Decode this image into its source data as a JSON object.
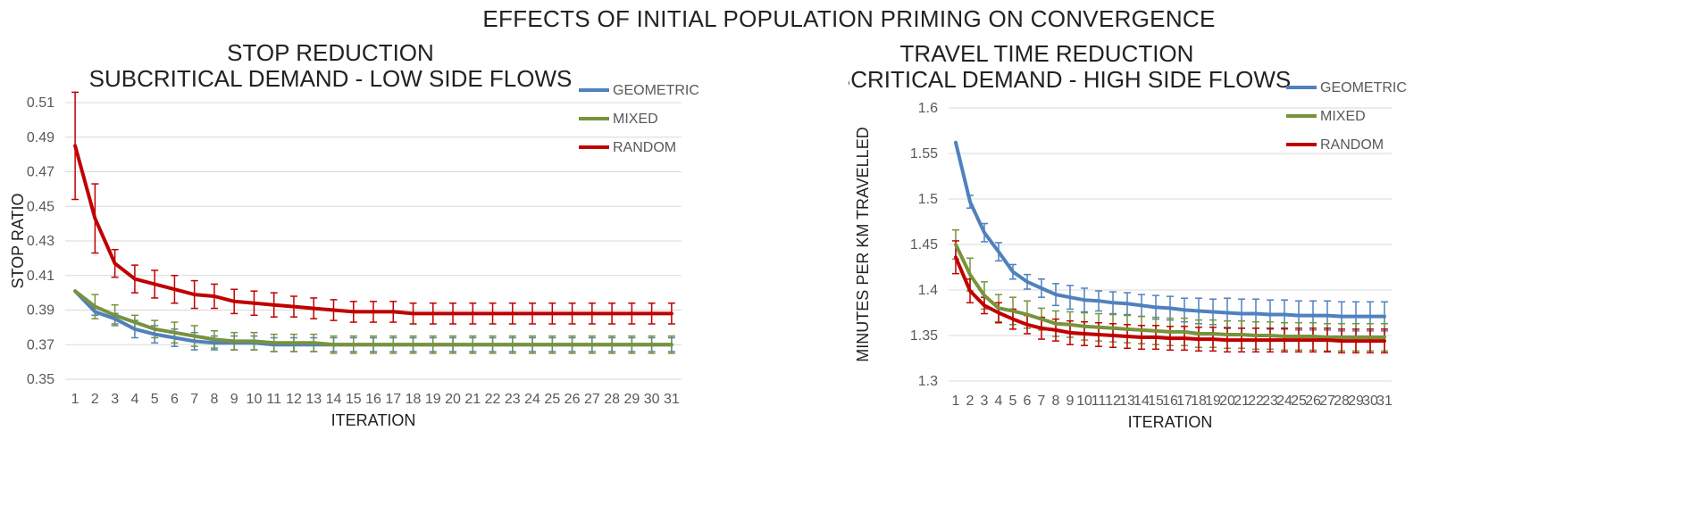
{
  "figure": {
    "title": "EFFECTS OF INITIAL POPULATION PRIMING ON CONVERGENCE"
  },
  "colors": {
    "geometric": "#4f81bd",
    "mixed": "#77933c",
    "random": "#c00000",
    "grid": "#d9d9d9",
    "axis": "#bfbfbf"
  },
  "chart_data": [
    {
      "type": "line",
      "title_lines": [
        "STOP REDUCTION",
        "SUBCRITICAL DEMAND - LOW SIDE FLOWS"
      ],
      "xlabel": "ITERATION",
      "ylabel": "STOP RATIO",
      "ylim": [
        0.35,
        0.51
      ],
      "yticks": [
        0.35,
        0.37,
        0.39,
        0.41,
        0.43,
        0.45,
        0.47,
        0.49,
        0.51
      ],
      "ytick_labels": [
        "0.35",
        "0.37",
        "0.39",
        "0.41",
        "0.43",
        "0.45",
        "0.47",
        "0.49",
        "0.51"
      ],
      "x": [
        1,
        2,
        3,
        4,
        5,
        6,
        7,
        8,
        9,
        10,
        11,
        12,
        13,
        14,
        15,
        16,
        17,
        18,
        19,
        20,
        21,
        22,
        23,
        24,
        25,
        26,
        27,
        28,
        29,
        30,
        31
      ],
      "grid": true,
      "legend_position": "top-right",
      "series": [
        {
          "name": "GEOMETRIC",
          "color_key": "geometric",
          "values": [
            0.401,
            0.389,
            0.385,
            0.379,
            0.376,
            0.374,
            0.372,
            0.371,
            0.371,
            0.371,
            0.37,
            0.37,
            0.37,
            0.37,
            0.37,
            0.37,
            0.37,
            0.37,
            0.37,
            0.37,
            0.37,
            0.37,
            0.37,
            0.37,
            0.37,
            0.37,
            0.37,
            0.37,
            0.37,
            0.37,
            0.37
          ],
          "errors": [
            0,
            0.002,
            0.003,
            0.005,
            0.005,
            0.005,
            0.005,
            0.004,
            0.004,
            0.004,
            0.004,
            0.004,
            0.004,
            0.004,
            0.004,
            0.004,
            0.004,
            0.004,
            0.004,
            0.004,
            0.004,
            0.004,
            0.004,
            0.004,
            0.004,
            0.004,
            0.004,
            0.004,
            0.004,
            0.004,
            0.004
          ]
        },
        {
          "name": "MIXED",
          "color_key": "mixed",
          "values": [
            0.401,
            0.392,
            0.387,
            0.383,
            0.379,
            0.377,
            0.375,
            0.373,
            0.372,
            0.372,
            0.371,
            0.371,
            0.371,
            0.37,
            0.37,
            0.37,
            0.37,
            0.37,
            0.37,
            0.37,
            0.37,
            0.37,
            0.37,
            0.37,
            0.37,
            0.37,
            0.37,
            0.37,
            0.37,
            0.37,
            0.37
          ],
          "errors": [
            0,
            0.007,
            0.006,
            0.004,
            0.005,
            0.006,
            0.006,
            0.005,
            0.005,
            0.005,
            0.005,
            0.005,
            0.005,
            0.005,
            0.005,
            0.005,
            0.005,
            0.005,
            0.005,
            0.005,
            0.005,
            0.005,
            0.005,
            0.005,
            0.005,
            0.005,
            0.005,
            0.005,
            0.005,
            0.005,
            0.005
          ]
        },
        {
          "name": "RANDOM",
          "color_key": "random",
          "values": [
            0.485,
            0.443,
            0.417,
            0.408,
            0.405,
            0.402,
            0.399,
            0.398,
            0.395,
            0.394,
            0.393,
            0.392,
            0.391,
            0.39,
            0.389,
            0.389,
            0.389,
            0.388,
            0.388,
            0.388,
            0.388,
            0.388,
            0.388,
            0.388,
            0.388,
            0.388,
            0.388,
            0.388,
            0.388,
            0.388,
            0.388
          ],
          "errors": [
            0.031,
            0.02,
            0.008,
            0.008,
            0.008,
            0.008,
            0.008,
            0.007,
            0.007,
            0.007,
            0.007,
            0.006,
            0.006,
            0.006,
            0.006,
            0.006,
            0.006,
            0.006,
            0.006,
            0.006,
            0.006,
            0.006,
            0.006,
            0.006,
            0.006,
            0.006,
            0.006,
            0.006,
            0.006,
            0.006,
            0.006
          ]
        }
      ]
    },
    {
      "type": "line",
      "title_lines": [
        "TRAVEL TIME REDUCTION",
        "SUBCRITICAL DEMAND - HIGH SIDE FLOWS"
      ],
      "xlabel": "ITERATION",
      "ylabel": "MINUTES PER KM TRAVELLED",
      "ylim": [
        1.3,
        1.6
      ],
      "yticks": [
        1.3,
        1.35,
        1.4,
        1.45,
        1.5,
        1.55,
        1.6
      ],
      "ytick_labels": [
        "1.3",
        "1.35",
        "1.4",
        "1.45",
        "1.5",
        "1.55",
        "1.6"
      ],
      "x": [
        1,
        2,
        3,
        4,
        5,
        6,
        7,
        8,
        9,
        10,
        11,
        12,
        13,
        14,
        15,
        16,
        17,
        18,
        19,
        20,
        21,
        22,
        23,
        24,
        25,
        26,
        27,
        28,
        29,
        30,
        31
      ],
      "grid": true,
      "legend_position": "top-right",
      "series": [
        {
          "name": "GEOMETRIC",
          "color_key": "geometric",
          "values": [
            1.562,
            1.497,
            1.463,
            1.442,
            1.42,
            1.409,
            1.402,
            1.395,
            1.392,
            1.389,
            1.388,
            1.386,
            1.385,
            1.383,
            1.381,
            1.38,
            1.378,
            1.377,
            1.376,
            1.375,
            1.374,
            1.374,
            1.373,
            1.373,
            1.372,
            1.372,
            1.372,
            1.371,
            1.371,
            1.371,
            1.371
          ],
          "errors": [
            0,
            0.007,
            0.01,
            0.01,
            0.008,
            0.008,
            0.01,
            0.012,
            0.013,
            0.013,
            0.011,
            0.012,
            0.012,
            0.012,
            0.013,
            0.013,
            0.013,
            0.014,
            0.014,
            0.016,
            0.016,
            0.016,
            0.016,
            0.016,
            0.016,
            0.016,
            0.016,
            0.016,
            0.016,
            0.016,
            0.016
          ]
        },
        {
          "name": "MIXED",
          "color_key": "mixed",
          "values": [
            1.45,
            1.417,
            1.394,
            1.38,
            1.377,
            1.373,
            1.368,
            1.363,
            1.362,
            1.36,
            1.359,
            1.358,
            1.357,
            1.356,
            1.355,
            1.354,
            1.354,
            1.352,
            1.352,
            1.351,
            1.351,
            1.35,
            1.35,
            1.349,
            1.349,
            1.349,
            1.348,
            1.348,
            1.348,
            1.348,
            1.348
          ],
          "errors": [
            0.016,
            0.018,
            0.015,
            0.015,
            0.015,
            0.015,
            0.012,
            0.014,
            0.014,
            0.015,
            0.015,
            0.015,
            0.015,
            0.015,
            0.015,
            0.015,
            0.015,
            0.015,
            0.015,
            0.015,
            0.015,
            0.015,
            0.015,
            0.015,
            0.015,
            0.015,
            0.015,
            0.015,
            0.015,
            0.015,
            0.015
          ]
        },
        {
          "name": "RANDOM",
          "color_key": "random",
          "values": [
            1.436,
            1.399,
            1.383,
            1.375,
            1.368,
            1.362,
            1.358,
            1.356,
            1.353,
            1.352,
            1.351,
            1.35,
            1.349,
            1.348,
            1.348,
            1.347,
            1.347,
            1.346,
            1.346,
            1.345,
            1.345,
            1.345,
            1.345,
            1.345,
            1.345,
            1.345,
            1.345,
            1.344,
            1.344,
            1.344,
            1.344
          ],
          "errors": [
            0.018,
            0.013,
            0.009,
            0.011,
            0.011,
            0.01,
            0.012,
            0.012,
            0.013,
            0.013,
            0.013,
            0.013,
            0.013,
            0.013,
            0.013,
            0.013,
            0.013,
            0.013,
            0.013,
            0.013,
            0.013,
            0.013,
            0.013,
            0.013,
            0.013,
            0.013,
            0.013,
            0.013,
            0.013,
            0.013,
            0.013
          ]
        }
      ]
    }
  ]
}
